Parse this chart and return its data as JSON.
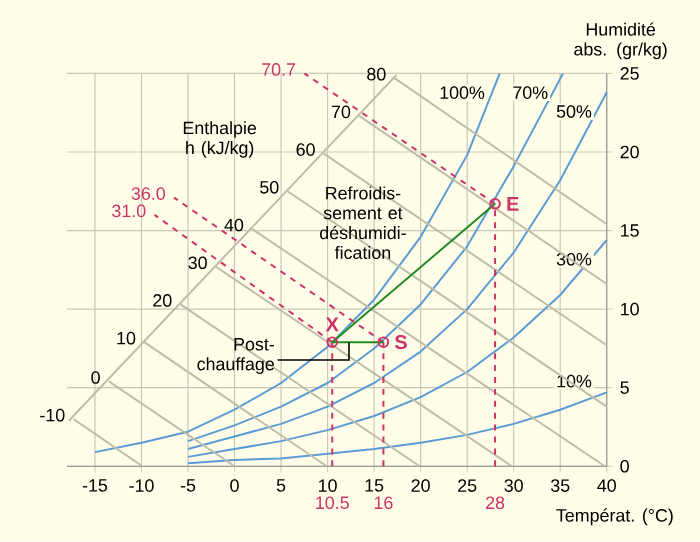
{
  "chart_data": {
    "type": "line",
    "xlabel": "Températ. (°C)",
    "ylabel": "Humidité abs. (gr/kg)",
    "xlim": [
      -18,
      40
    ],
    "xticks": [
      -15,
      -10,
      -5,
      0,
      5,
      10,
      15,
      20,
      25,
      30,
      35,
      40
    ],
    "ylim": [
      0,
      25
    ],
    "yticks": [
      0,
      5,
      10,
      15,
      20,
      25
    ],
    "grid": true,
    "line_style": "solid",
    "marker": "none",
    "series": [
      {
        "name": "100%",
        "color": "#5b9bd5",
        "x": [
          -15,
          -10,
          -5,
          0,
          5,
          10,
          15,
          20,
          25,
          28.5
        ],
        "values": [
          0.9,
          1.5,
          2.2,
          3.6,
          5.3,
          7.6,
          10.6,
          14.6,
          19.8,
          25
        ]
      },
      {
        "name": "70%",
        "color": "#5b9bd5",
        "x": [
          -5,
          0,
          5,
          10,
          15,
          20,
          25,
          30,
          35.3
        ],
        "values": [
          1.6,
          2.6,
          3.8,
          5.3,
          7.5,
          10.3,
          14.0,
          19.1,
          25
        ]
      },
      {
        "name": "50%",
        "color": "#5b9bd5",
        "x": [
          -5,
          0,
          5,
          10,
          15,
          20,
          25,
          30,
          35,
          40
        ],
        "values": [
          1.1,
          1.9,
          2.7,
          3.8,
          5.3,
          7.3,
          10.0,
          13.6,
          18.2,
          23.8
        ]
      },
      {
        "name": "30%",
        "color": "#5b9bd5",
        "x": [
          -5,
          0,
          5,
          10,
          15,
          20,
          25,
          30,
          35,
          40
        ],
        "values": [
          0.6,
          1.1,
          1.6,
          2.3,
          3.2,
          4.4,
          6.0,
          8.2,
          10.9,
          14.4
        ]
      },
      {
        "name": "10%",
        "color": "#5b9bd5",
        "x": [
          -5,
          0,
          5,
          10,
          15,
          20,
          25,
          30,
          35,
          40
        ],
        "values": [
          0.2,
          0.4,
          0.5,
          0.8,
          1.1,
          1.5,
          2.0,
          2.7,
          3.6,
          4.7
        ]
      },
      {
        "color": "#bdbdaa",
        "x": [
          -17.8,
          17.4
        ],
        "values": [
          2.9,
          24.9
        ]
      },
      {
        "color": "#bdbdaa",
        "x": [
          -17.3,
          -9.9
        ],
        "values": [
          3.0,
          0
        ]
      },
      {
        "color": "#bdbdaa",
        "x": [
          -13.5,
          0
        ],
        "values": [
          5.4,
          0
        ]
      },
      {
        "color": "#bdbdaa",
        "x": [
          -9.7,
          9.9
        ],
        "values": [
          7.9,
          0
        ]
      },
      {
        "color": "#bdbdaa",
        "x": [
          -5.8,
          19.9
        ],
        "values": [
          10.3,
          0
        ]
      },
      {
        "color": "#bdbdaa",
        "x": [
          -2.0,
          29.8
        ],
        "values": [
          12.7,
          0
        ]
      },
      {
        "color": "#bdbdaa",
        "x": [
          1.9,
          39.8
        ],
        "values": [
          15.1,
          0
        ]
      },
      {
        "color": "#bdbdaa",
        "x": [
          5.7,
          40
        ],
        "values": [
          17.5,
          3.8
        ]
      },
      {
        "color": "#bdbdaa",
        "x": [
          9.6,
          40
        ],
        "values": [
          19.9,
          7.7
        ]
      },
      {
        "color": "#bdbdaa",
        "x": [
          13.4,
          40
        ],
        "values": [
          22.3,
          11.6
        ]
      },
      {
        "color": "#bdbdaa",
        "x": [
          17.2,
          40
        ],
        "values": [
          24.7,
          15.4
        ]
      },
      {
        "color": "#cc3366",
        "line_style": "dashed",
        "x": [
          10.5,
          10.5
        ],
        "values": [
          0,
          7.9
        ]
      },
      {
        "color": "#cc3366",
        "line_style": "dashed",
        "x": [
          16,
          16
        ],
        "values": [
          0,
          7.9
        ]
      },
      {
        "color": "#cc3366",
        "line_style": "dashed",
        "x": [
          28,
          28
        ],
        "values": [
          0,
          16.7
        ]
      },
      {
        "color": "#cc3366",
        "line_style": "dashed",
        "x": [
          10.5,
          -8.6
        ],
        "values": [
          7.9,
          16.0
        ]
      },
      {
        "color": "#cc3366",
        "line_style": "dashed",
        "x": [
          16,
          -6.5
        ],
        "values": [
          7.9,
          17.1
        ]
      },
      {
        "color": "#cc3366",
        "line_style": "dashed",
        "x": [
          28,
          7.5
        ],
        "values": [
          16.7,
          25.0
        ]
      },
      {
        "color": "#228b22",
        "x": [
          28,
          10.5,
          16
        ],
        "values": [
          16.7,
          7.9,
          7.9
        ]
      },
      {
        "type": "scatter",
        "name": "X",
        "color": "#cc3366",
        "marker": "circle",
        "x": [
          10.5
        ],
        "values": [
          7.9
        ]
      },
      {
        "type": "scatter",
        "name": "S",
        "color": "#cc3366",
        "marker": "circle",
        "x": [
          16
        ],
        "values": [
          7.9
        ]
      },
      {
        "type": "scatter",
        "name": "E",
        "color": "#cc3366",
        "marker": "circle",
        "x": [
          28
        ],
        "values": [
          16.7
        ]
      }
    ],
    "annotations": [
      "Enthalpie h (kJ/kg)",
      "Refroidis- sement et déshumidi- fication",
      {
        "text": "Post- chauffage",
        "x": 12.3,
        "y": 7.9
      },
      {
        "text": "-10",
        "x": -17.3,
        "y": 3.0
      },
      {
        "text": "0",
        "x": -13.5,
        "y": 5.4
      },
      {
        "text": "10",
        "x": -9.7,
        "y": 7.9
      },
      {
        "text": "20",
        "x": -5.8,
        "y": 10.3
      },
      {
        "text": "30",
        "x": -2.0,
        "y": 12.7
      },
      {
        "text": "40",
        "x": 1.9,
        "y": 15.1
      },
      {
        "text": "50",
        "x": 5.7,
        "y": 17.5
      },
      {
        "text": "60",
        "x": 9.6,
        "y": 19.9
      },
      {
        "text": "70",
        "x": 13.4,
        "y": 22.3
      },
      {
        "text": "80",
        "x": 17.2,
        "y": 24.7
      },
      {
        "text": "70.7",
        "x": 7.5,
        "y": 25.0
      },
      {
        "text": "36.0",
        "x": -6.5,
        "y": 17.1
      },
      {
        "text": "31.0",
        "x": -8.6,
        "y": 16.0
      },
      {
        "text": "10.5",
        "x": 10.5,
        "y": 0
      },
      {
        "text": "16",
        "x": 16,
        "y": 0
      },
      {
        "text": "28",
        "x": 28,
        "y": 0
      }
    ]
  }
}
